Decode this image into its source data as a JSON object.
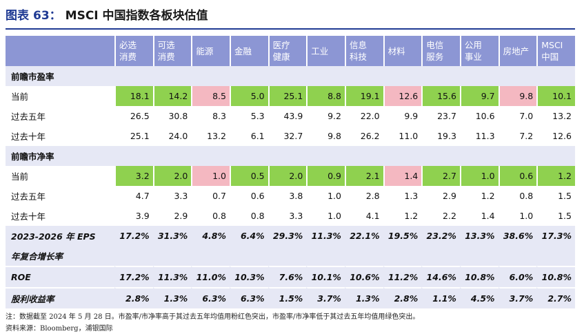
{
  "title": {
    "prefix": "图表",
    "number": "63：",
    "name": "MSCI 中国指数各板块估值"
  },
  "columns": [
    [
      "必选",
      "消费"
    ],
    [
      "可选",
      "消费"
    ],
    [
      "能源"
    ],
    [
      "金融"
    ],
    [
      "医疗",
      "健康"
    ],
    [
      "工业"
    ],
    [
      "信息",
      "科技"
    ],
    [
      "材料"
    ],
    [
      "电信",
      "服务"
    ],
    [
      "公用",
      "事业"
    ],
    [
      "房地产"
    ],
    [
      "MSCI",
      "中国"
    ]
  ],
  "sections": [
    {
      "title": "前瞻市盈率",
      "rows": [
        {
          "label": "当前",
          "values": [
            "18.1",
            "14.2",
            "8.5",
            "5.0",
            "25.1",
            "8.8",
            "19.1",
            "12.6",
            "15.6",
            "9.7",
            "9.8",
            "10.1"
          ],
          "colors": [
            "g",
            "g",
            "r",
            "g",
            "g",
            "g",
            "g",
            "r",
            "g",
            "g",
            "r",
            "g"
          ]
        },
        {
          "label": "过去五年",
          "values": [
            "26.5",
            "30.8",
            "8.3",
            "5.3",
            "43.9",
            "9.2",
            "22.0",
            "9.9",
            "23.7",
            "10.6",
            "7.0",
            "13.2"
          ]
        },
        {
          "label": "过去十年",
          "values": [
            "25.1",
            "24.0",
            "13.2",
            "6.1",
            "32.7",
            "9.8",
            "26.2",
            "11.0",
            "19.3",
            "11.3",
            "7.2",
            "12.6"
          ]
        }
      ]
    },
    {
      "title": "前瞻市净率",
      "rows": [
        {
          "label": "当前",
          "values": [
            "3.2",
            "2.0",
            "1.0",
            "0.5",
            "2.0",
            "0.9",
            "2.1",
            "1.4",
            "2.7",
            "1.0",
            "0.6",
            "1.2"
          ],
          "colors": [
            "g",
            "g",
            "r",
            "g",
            "g",
            "g",
            "g",
            "r",
            "g",
            "g",
            "g",
            "g"
          ]
        },
        {
          "label": "过去五年",
          "values": [
            "4.7",
            "3.3",
            "0.7",
            "0.6",
            "3.8",
            "1.0",
            "2.8",
            "1.3",
            "2.9",
            "1.2",
            "0.8",
            "1.5"
          ]
        },
        {
          "label": "过去十年",
          "values": [
            "3.9",
            "2.9",
            "0.8",
            "0.8",
            "3.3",
            "1.0",
            "4.1",
            "1.2",
            "2.2",
            "1.4",
            "1.0",
            "1.5"
          ]
        }
      ]
    }
  ],
  "bottom_rows": [
    {
      "label": "2023-2026 年 EPS",
      "label2": "年复合增长率",
      "values": [
        "17.2%",
        "31.3%",
        "4.8%",
        "6.4%",
        "29.3%",
        "11.3%",
        "22.1%",
        "19.5%",
        "23.2%",
        "13.3%",
        "38.6%",
        "17.3%"
      ]
    },
    {
      "label": "ROE",
      "values": [
        "17.2%",
        "11.3%",
        "11.0%",
        "10.3%",
        "7.6%",
        "10.1%",
        "10.6%",
        "11.2%",
        "14.6%",
        "10.8%",
        "6.0%",
        "10.8%"
      ]
    },
    {
      "label": "股利收益率",
      "values": [
        "2.8%",
        "1.3%",
        "6.3%",
        "6.3%",
        "1.5%",
        "3.7%",
        "1.3%",
        "2.8%",
        "1.1%",
        "4.5%",
        "3.7%",
        "2.7%"
      ]
    }
  ],
  "note": "注：数据截至 2024 年 5 月 28 日。市盈率/市净率高于其过去五年均值用粉红色突出，市盈率/市净率低于其过去五年均值用绿色突出。",
  "source": "资料来源：Bloomberg，浦银国际",
  "colors": {
    "green": "#8fd14f",
    "pink": "#f4b8c1",
    "header": "#8c96d4",
    "section": "#e6e8f5",
    "title": "#1f3a93"
  }
}
